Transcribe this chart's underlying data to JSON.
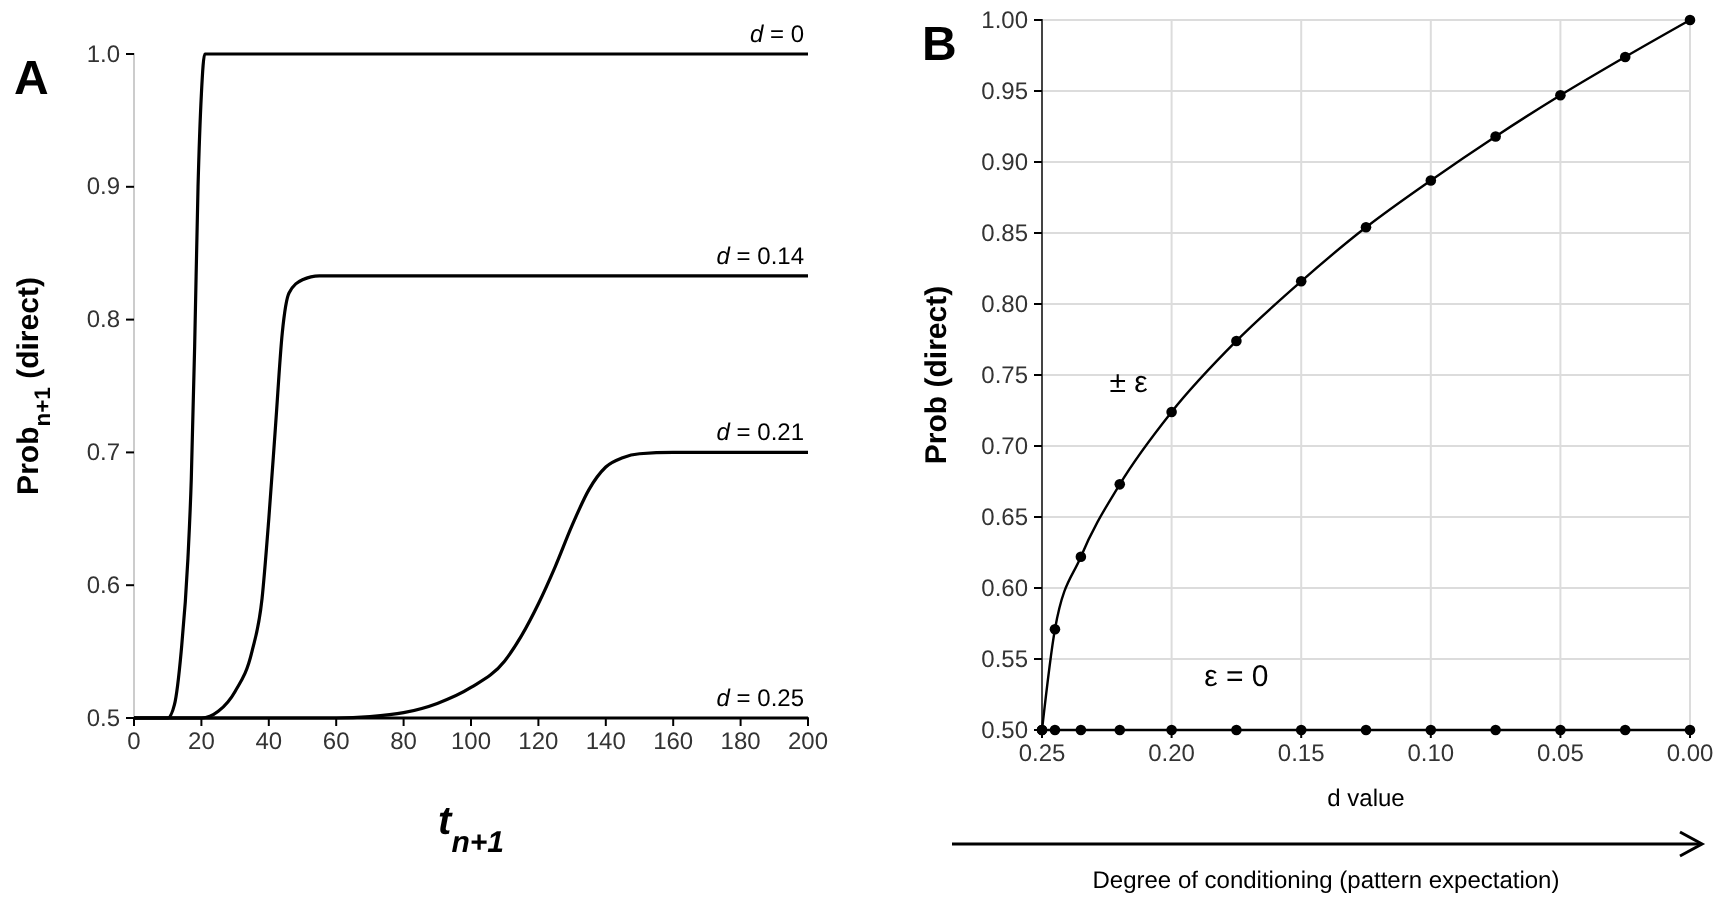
{
  "chart_data": [
    {
      "type": "line",
      "title": "A",
      "xlabel": "t$_{n+1}$",
      "ylabel": "Prob$_{n+1}$ (direct)",
      "xlim": [
        0,
        200
      ],
      "xticks": [
        0,
        20,
        40,
        60,
        80,
        100,
        120,
        140,
        160,
        180,
        200
      ],
      "ylim": [
        0.5,
        1.0
      ],
      "yticks": [
        0.5,
        0.6,
        0.7,
        0.8,
        0.9,
        {
          "value": 1.0,
          "label": "1.0"
        }
      ],
      "grid": false,
      "marker": "none",
      "line_style": "solid",
      "series": [
        {
          "name": "d = 0",
          "color": "#000000",
          "x": [
            0,
            10,
            12,
            14,
            16,
            17,
            18,
            19,
            20,
            21,
            200
          ],
          "values": [
            0.5,
            0.5,
            0.51,
            0.55,
            0.62,
            0.68,
            0.78,
            0.9,
            0.97,
            1.0,
            1.0
          ]
        },
        {
          "name": "d = 0.14",
          "color": "#000000",
          "x": [
            0,
            20,
            25,
            30,
            35,
            38,
            40,
            42,
            44,
            46,
            50,
            55,
            200
          ],
          "values": [
            0.5,
            0.5,
            0.505,
            0.52,
            0.55,
            0.59,
            0.65,
            0.72,
            0.79,
            0.82,
            0.83,
            0.833,
            0.833
          ]
        },
        {
          "name": "d = 0.21",
          "color": "#000000",
          "x": [
            0,
            60,
            70,
            80,
            90,
            100,
            110,
            115,
            120,
            125,
            130,
            135,
            140,
            145,
            150,
            160,
            200
          ],
          "values": [
            0.5,
            0.5,
            0.501,
            0.504,
            0.511,
            0.523,
            0.543,
            0.562,
            0.586,
            0.614,
            0.645,
            0.672,
            0.689,
            0.696,
            0.699,
            0.7,
            0.7
          ]
        },
        {
          "name": "d = 0.25",
          "color": "#000000",
          "x": [
            0,
            200
          ],
          "values": [
            0.5,
            0.5
          ]
        }
      ]
    },
    {
      "type": "line",
      "title": "B",
      "xlabel": "d value",
      "ylabel": "Prob (direct)",
      "annotations": [
        "Degree of conditioning (pattern expectation)"
      ],
      "xlim": [
        0.25,
        0.0
      ],
      "xticks": [
        {
          "value": 0.25,
          "label": "0.25"
        },
        {
          "value": 0.2,
          "label": "0.20"
        },
        0.15,
        {
          "value": 0.1,
          "label": "0.10"
        },
        0.05,
        {
          "value": 0,
          "label": "0.00"
        }
      ],
      "ylim": [
        0.5,
        1.0
      ],
      "yticks": [
        {
          "value": 0.5,
          "label": "0.50"
        },
        0.55,
        {
          "value": 0.6,
          "label": "0.60"
        },
        0.65,
        {
          "value": 0.7,
          "label": "0.70"
        },
        0.75,
        {
          "value": 0.8,
          "label": "0.80"
        },
        0.85,
        {
          "value": 0.9,
          "label": "0.90"
        },
        0.95,
        {
          "value": 1.0,
          "label": "1.00"
        }
      ],
      "grid": true,
      "marker": "circle",
      "line_style": "solid",
      "series": [
        {
          "name": "± ε",
          "color": "#000000",
          "x": [
            0.25,
            0.245,
            0.235,
            0.22,
            0.2,
            0.175,
            0.15,
            0.125,
            0.1,
            0.075,
            0.05,
            0.025,
            0
          ],
          "values": [
            0.5,
            0.571,
            0.622,
            0.673,
            0.724,
            0.774,
            0.816,
            0.854,
            0.887,
            0.918,
            0.947,
            0.974,
            1.0
          ]
        },
        {
          "name": "ε = 0",
          "color": "#000000",
          "x": [
            0.25,
            0.245,
            0.235,
            0.22,
            0.2,
            0.175,
            0.15,
            0.125,
            0.1,
            0.075,
            0.05,
            0.025,
            0
          ],
          "values": [
            0.5,
            0.5,
            0.5,
            0.5,
            0.5,
            0.5,
            0.5,
            0.5,
            0.5,
            0.5,
            0.5,
            0.5,
            0.5
          ]
        }
      ]
    }
  ]
}
